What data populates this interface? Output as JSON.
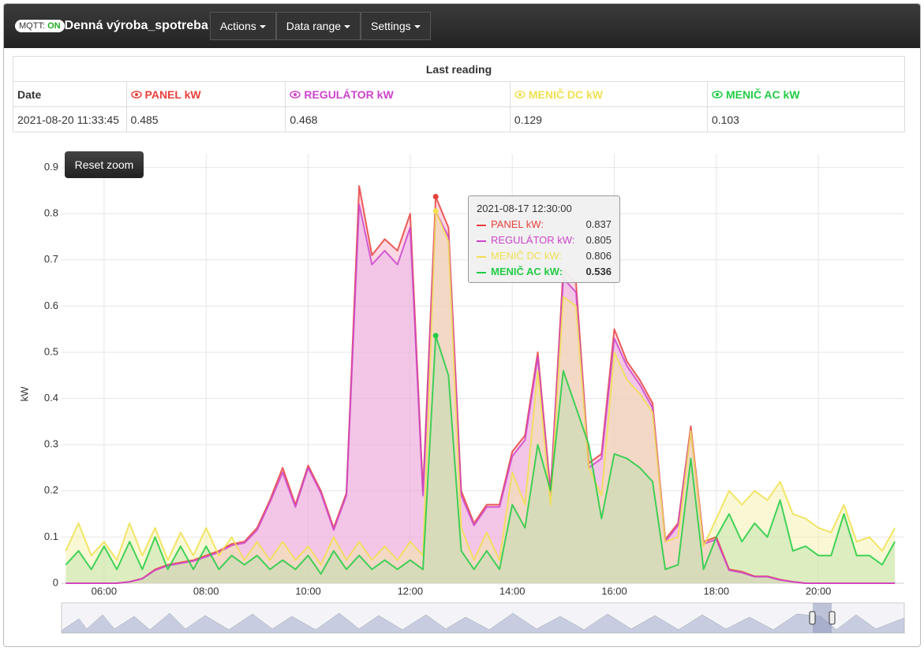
{
  "navbar": {
    "mqtt_label": "MQTT:",
    "mqtt_state": "ON",
    "title": "Denná výroba_spotreba",
    "menus": [
      "Actions",
      "Data range",
      "Settings"
    ]
  },
  "table": {
    "caption": "Last reading",
    "date_header": "Date",
    "row": [
      "2021-08-20 11:33:45",
      0.485,
      0.468,
      0.129,
      0.103
    ]
  },
  "reset_zoom": "Reset zoom",
  "tooltip": {
    "title": "2021-08-17 12:30:00",
    "rows": [
      {
        "label": "PANEL kW:",
        "value": 0.837
      },
      {
        "label": "REGULÁTOR kW:",
        "value": 0.805
      },
      {
        "label": "MENIČ DC kW:",
        "value": 0.806
      },
      {
        "label": "MENIČ AC kW:",
        "value": 0.536
      }
    ]
  },
  "chart_data": {
    "type": "area",
    "y_label": "kW",
    "grid": true,
    "xlim": [
      310,
      1301
    ],
    "ylim": [
      0,
      0.93
    ],
    "xticks": [
      {
        "value": 360,
        "label": "06:00"
      },
      {
        "value": 480,
        "label": "08:00"
      },
      {
        "value": 600,
        "label": "10:00"
      },
      {
        "value": 720,
        "label": "12:00"
      },
      {
        "value": 840,
        "label": "14:00"
      },
      {
        "value": 960,
        "label": "16:00"
      },
      {
        "value": 1080,
        "label": "18:00"
      },
      {
        "value": 1200,
        "label": "20:00"
      }
    ],
    "yticks": [
      0,
      0.1,
      0.2,
      0.3,
      0.4,
      0.5,
      0.6,
      0.7,
      0.8,
      0.9
    ],
    "x": [
      315,
      330,
      345,
      360,
      375,
      390,
      405,
      420,
      435,
      450,
      465,
      480,
      495,
      510,
      525,
      540,
      555,
      570,
      585,
      600,
      615,
      630,
      645,
      660,
      675,
      690,
      705,
      720,
      735,
      750,
      765,
      780,
      795,
      810,
      825,
      840,
      855,
      870,
      885,
      900,
      915,
      930,
      945,
      960,
      975,
      990,
      1005,
      1020,
      1035,
      1050,
      1065,
      1080,
      1095,
      1110,
      1125,
      1140,
      1155,
      1170,
      1185,
      1200,
      1215,
      1230,
      1245,
      1260,
      1275,
      1290
    ],
    "series": [
      {
        "name": "PANEL kW",
        "color": "#e8413c",
        "fill": "#f7a8c4",
        "values": [
          0,
          0,
          0,
          0,
          0,
          0.003,
          0.01,
          0.03,
          0.04,
          0.045,
          0.05,
          0.06,
          0.07,
          0.085,
          0.09,
          0.12,
          0.18,
          0.25,
          0.17,
          0.255,
          0.2,
          0.12,
          0.195,
          0.86,
          0.71,
          0.745,
          0.72,
          0.8,
          0.2,
          0.837,
          0.77,
          0.2,
          0.13,
          0.17,
          0.17,
          0.285,
          0.32,
          0.5,
          0.2,
          0.68,
          0.65,
          0.26,
          0.28,
          0.55,
          0.48,
          0.44,
          0.39,
          0.095,
          0.13,
          0.34,
          0.09,
          0.1,
          0.03,
          0.025,
          0.015,
          0.015,
          0.008,
          0.003,
          0,
          0,
          0,
          0,
          0,
          0,
          0,
          0
        ]
      },
      {
        "name": "REGULÁTOR kW",
        "color": "#cc44cc",
        "fill": "#e8b0e8",
        "values": [
          0,
          0,
          0,
          0,
          0,
          0.003,
          0.01,
          0.028,
          0.038,
          0.043,
          0.048,
          0.057,
          0.067,
          0.082,
          0.087,
          0.115,
          0.175,
          0.24,
          0.165,
          0.25,
          0.195,
          0.115,
          0.19,
          0.82,
          0.69,
          0.72,
          0.69,
          0.77,
          0.19,
          0.805,
          0.75,
          0.19,
          0.125,
          0.165,
          0.165,
          0.275,
          0.31,
          0.49,
          0.19,
          0.66,
          0.63,
          0.25,
          0.27,
          0.53,
          0.47,
          0.43,
          0.38,
          0.09,
          0.125,
          0.33,
          0.085,
          0.095,
          0.028,
          0.023,
          0.014,
          0.014,
          0.007,
          0.003,
          0,
          0,
          0,
          0,
          0,
          0,
          0,
          0
        ]
      },
      {
        "name": "MENIČ DC kW",
        "color": "#f0e050",
        "fill": "#f4f0a0",
        "values": [
          0.07,
          0.13,
          0.06,
          0.09,
          0.05,
          0.13,
          0.06,
          0.12,
          0.05,
          0.11,
          0.06,
          0.12,
          0.06,
          0.1,
          0.05,
          0.09,
          0.05,
          0.09,
          0.05,
          0.08,
          0.04,
          0.1,
          0.05,
          0.09,
          0.05,
          0.08,
          0.05,
          0.09,
          0.06,
          0.806,
          0.74,
          0.12,
          0.05,
          0.11,
          0.05,
          0.24,
          0.17,
          0.46,
          0.17,
          0.62,
          0.6,
          0.25,
          0.19,
          0.5,
          0.44,
          0.41,
          0.37,
          0.09,
          0.1,
          0.33,
          0.08,
          0.14,
          0.2,
          0.17,
          0.2,
          0.18,
          0.22,
          0.15,
          0.14,
          0.12,
          0.11,
          0.17,
          0.09,
          0.1,
          0.07,
          0.12
        ]
      },
      {
        "name": "MENIČ AC kW",
        "color": "#22cc44",
        "fill": "#b8e0a8",
        "values": [
          0.04,
          0.07,
          0.03,
          0.08,
          0.03,
          0.09,
          0.03,
          0.1,
          0.03,
          0.08,
          0.03,
          0.08,
          0.03,
          0.06,
          0.04,
          0.06,
          0.03,
          0.05,
          0.03,
          0.06,
          0.02,
          0.07,
          0.03,
          0.06,
          0.03,
          0.05,
          0.03,
          0.05,
          0.03,
          0.536,
          0.45,
          0.07,
          0.03,
          0.07,
          0.03,
          0.17,
          0.12,
          0.3,
          0.2,
          0.46,
          0.38,
          0.3,
          0.14,
          0.28,
          0.27,
          0.25,
          0.22,
          0.03,
          0.04,
          0.27,
          0.03,
          0.1,
          0.15,
          0.09,
          0.13,
          0.1,
          0.18,
          0.07,
          0.08,
          0.06,
          0.06,
          0.15,
          0.06,
          0.06,
          0.04,
          0.09
        ]
      }
    ]
  }
}
